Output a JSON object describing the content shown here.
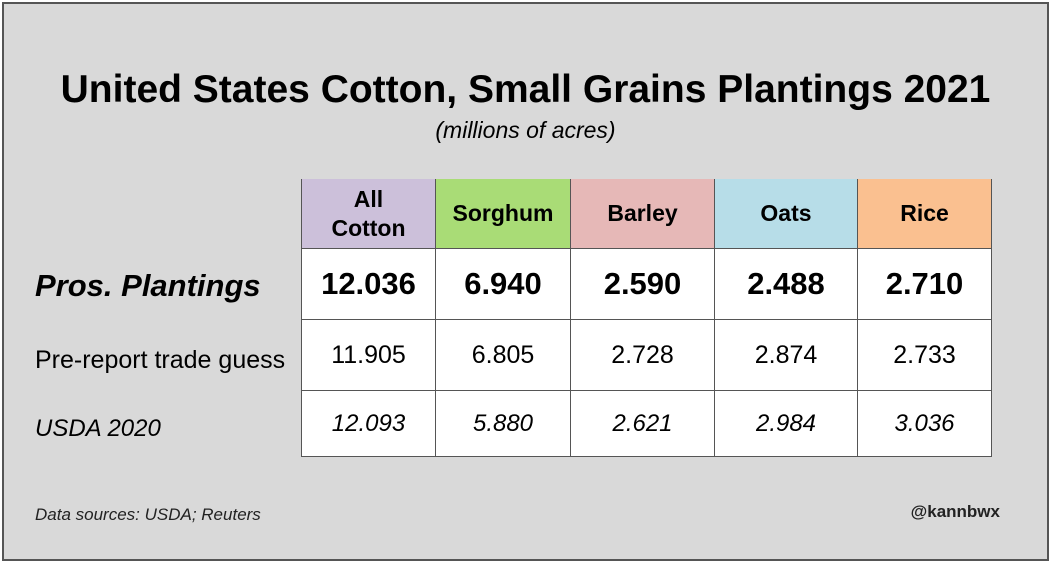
{
  "title": "United States Cotton, Small Grains Plantings 2021",
  "subtitle": "(millions of acres)",
  "source": "Data sources: USDA; Reuters",
  "handle": "@kannbwx",
  "colors": {
    "background": "#d9d9d9",
    "all_cotton": "#ccc0da",
    "sorghum": "#a9dc76",
    "barley": "#e6b8b7",
    "oats": "#b7dde8",
    "rice": "#fac090"
  },
  "chart_data": {
    "type": "table",
    "columns": [
      "All Cotton",
      "Sorghum",
      "Barley",
      "Oats",
      "Rice"
    ],
    "column_lines": [
      [
        "All",
        "Cotton"
      ],
      [
        "Sorghum"
      ],
      [
        "Barley"
      ],
      [
        "Oats"
      ],
      [
        "Rice"
      ]
    ],
    "rows": [
      {
        "label": "Pros. Plantings",
        "values": [
          "12.036",
          "6.940",
          "2.590",
          "2.488",
          "2.710"
        ]
      },
      {
        "label": "Pre-report trade guess",
        "values": [
          "11.905",
          "6.805",
          "2.728",
          "2.874",
          "2.733"
        ]
      },
      {
        "label": "USDA 2020",
        "values": [
          "12.093",
          "5.880",
          "2.621",
          "2.984",
          "3.036"
        ]
      }
    ]
  }
}
